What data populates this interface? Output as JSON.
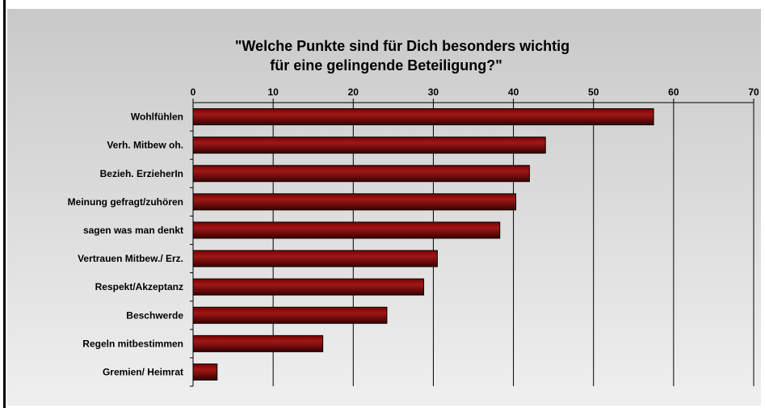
{
  "chart_data": {
    "type": "bar",
    "orientation": "horizontal",
    "title_line1": "\"Welche Punkte sind für Dich besonders wichtig",
    "title_line2": "für eine gelingende Beteiligung?\"",
    "categories": [
      "Wohlfühlen",
      "Verh. Mitbew oh.",
      "Bezieh. ErzieherIn",
      "Meinung gefragt/zuhören",
      "sagen was man denkt",
      "Vertrauen Mitbew./ Erz.",
      "Respekt/Akzeptanz",
      "Beschwerde",
      "Regeln mitbestimmen",
      "Gremien/ Heimrat"
    ],
    "values": [
      57.5,
      44,
      42,
      40.3,
      38.3,
      30.5,
      28.8,
      24.2,
      16.2,
      3
    ],
    "xlim": [
      0,
      70
    ],
    "xticks": [
      "0",
      "10",
      "20",
      "30",
      "40",
      "50",
      "60",
      "70"
    ],
    "x_axis_position": "top",
    "grid": true,
    "bar_color": "#7a0000",
    "bar_color_light": "#a01818",
    "bar_color_dark": "#3c0000",
    "background_gradient": [
      "#c9c9c9",
      "#efefef"
    ]
  }
}
